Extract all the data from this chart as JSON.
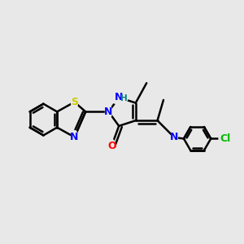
{
  "background_color": "#e8e8e8",
  "atom_colors": {
    "S": "#cccc00",
    "N": "#0000ff",
    "O": "#ff0000",
    "Cl": "#00bb00",
    "H": "#008080",
    "C": "#000000"
  },
  "figsize": [
    3.0,
    3.0
  ],
  "dpi": 100,
  "bond_lw": 1.8
}
